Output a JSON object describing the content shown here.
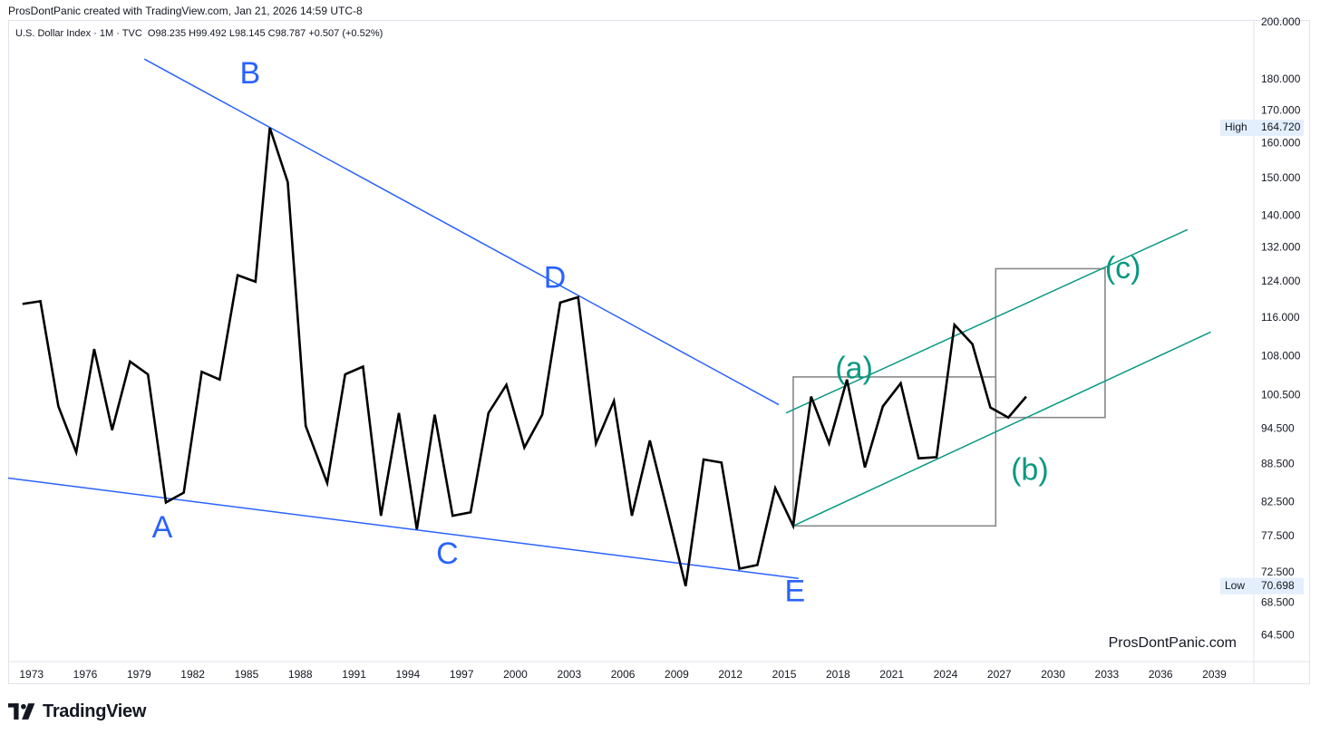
{
  "header": {
    "attribution": "ProsDontPanic created with TradingView.com, Jan 21, 2026 14:59 UTC-8"
  },
  "legend": {
    "symbol": "U.S. Dollar Index · 1M · TVC",
    "open": "O98.235",
    "high": "H99.492",
    "low": "L98.145",
    "close": "C98.787",
    "change": "+0.507 (+0.52%)"
  },
  "watermark": "ProsDontPanic.com",
  "footer": {
    "logo_text": "TradingView"
  },
  "colors": {
    "price_line": "#000000",
    "trendlines": "#2962ff",
    "channel": "#089981",
    "boxes": "#888888",
    "tag_bg": "#e3effd"
  },
  "icons": {
    "logo": "tradingview-logo-icon"
  },
  "chart_data": {
    "type": "line",
    "title": "U.S. Dollar Index · 1M · TVC",
    "scale": "log",
    "ylim": [
      61.5,
      201
    ],
    "xlim": [
      1971.7,
      2041.2
    ],
    "y_ticks": [
      {
        "value": 200,
        "label": "200.000"
      },
      {
        "value": 180,
        "label": "180.000"
      },
      {
        "value": 170,
        "label": "170.000"
      },
      {
        "value": 160,
        "label": "160.000"
      },
      {
        "value": 150,
        "label": "150.000"
      },
      {
        "value": 140,
        "label": "140.000"
      },
      {
        "value": 132,
        "label": "132.000"
      },
      {
        "value": 124,
        "label": "124.000"
      },
      {
        "value": 116,
        "label": "116.000"
      },
      {
        "value": 108,
        "label": "108.000"
      },
      {
        "value": 100.5,
        "label": "100.500"
      },
      {
        "value": 94.5,
        "label": "94.500"
      },
      {
        "value": 88.5,
        "label": "88.500"
      },
      {
        "value": 82.5,
        "label": "82.500"
      },
      {
        "value": 77.5,
        "label": "77.500"
      },
      {
        "value": 72.5,
        "label": "72.500"
      },
      {
        "value": 68.5,
        "label": "68.500"
      },
      {
        "value": 64.5,
        "label": "64.500"
      }
    ],
    "x_ticks": [
      "1973",
      "1976",
      "1979",
      "1982",
      "1985",
      "1988",
      "1991",
      "1994",
      "1997",
      "2000",
      "2003",
      "2006",
      "2009",
      "2012",
      "2015",
      "2018",
      "2021",
      "2024",
      "2027",
      "2030",
      "2033",
      "2036",
      "2039"
    ],
    "high_tag": {
      "label": "High",
      "value": 164.72,
      "text": "164.720"
    },
    "low_tag": {
      "label": "Low",
      "value": 70.698,
      "text": "70.698"
    },
    "series": [
      {
        "points": [
          [
            1972.5,
            119
          ],
          [
            1973.5,
            119.6
          ],
          [
            1974.5,
            98.5
          ],
          [
            1975.5,
            90.5
          ],
          [
            1976.5,
            109.5
          ],
          [
            1977.5,
            94.3
          ],
          [
            1978.5,
            107
          ],
          [
            1979.5,
            104.5
          ],
          [
            1980.5,
            82.5
          ],
          [
            1981.5,
            84
          ],
          [
            1982.5,
            105
          ],
          [
            1983.5,
            103.5
          ],
          [
            1984.5,
            125.5
          ],
          [
            1985.5,
            124
          ],
          [
            1986.3,
            164.72
          ],
          [
            1987.3,
            149
          ],
          [
            1988.3,
            95
          ],
          [
            1989.5,
            85.5
          ],
          [
            1990.5,
            104.5
          ],
          [
            1991.5,
            106
          ],
          [
            1992.5,
            80.5
          ],
          [
            1993.5,
            97.3
          ],
          [
            1994.5,
            78.5
          ],
          [
            1995.5,
            97
          ],
          [
            1996.5,
            80.5
          ],
          [
            1997.5,
            81
          ],
          [
            1998.5,
            97.3
          ],
          [
            1999.5,
            102.5
          ],
          [
            2000.5,
            91.3
          ],
          [
            2001.5,
            97
          ],
          [
            2002.5,
            119.3
          ],
          [
            2003.5,
            120.5
          ],
          [
            2004.5,
            92
          ],
          [
            2005.5,
            99.5
          ],
          [
            2006.5,
            80.5
          ],
          [
            2007.5,
            92.5
          ],
          [
            2008.5,
            81
          ],
          [
            2009.5,
            70.698
          ],
          [
            2010.5,
            89.3
          ],
          [
            2011.5,
            88.8
          ],
          [
            2012.5,
            73
          ],
          [
            2013.5,
            73.5
          ],
          [
            2014.5,
            84.7
          ],
          [
            2015.5,
            79
          ],
          [
            2016.5,
            100.3
          ],
          [
            2017.5,
            92
          ],
          [
            2018.5,
            103.5
          ],
          [
            2019.5,
            88
          ],
          [
            2020.5,
            98.5
          ],
          [
            2021.5,
            102.8
          ],
          [
            2022.5,
            89.5
          ],
          [
            2023.5,
            89.7
          ],
          [
            2024.5,
            114.5
          ],
          [
            2025.5,
            110.5
          ],
          [
            2026.5,
            98.3
          ],
          [
            2027.5,
            96.5
          ],
          [
            2028.5,
            100.3
          ]
        ]
      }
    ],
    "trendlines": [
      {
        "color": "#2962ff",
        "from": [
          2014.7,
          98.8
        ],
        "to": [
          1979.3,
          187
        ]
      },
      {
        "color": "#2962ff",
        "from": [
          1971.7,
          86.3
        ],
        "to": [
          2015.8,
          71.7
        ]
      },
      {
        "color": "#089981",
        "from": [
          2015.1,
          97.3
        ],
        "to": [
          2037.5,
          136.5
        ]
      },
      {
        "color": "#089981",
        "from": [
          2015.5,
          79
        ],
        "to": [
          2038.8,
          113
        ]
      }
    ],
    "boxes": [
      {
        "x1": 2015.5,
        "x2": 2026.8,
        "y1": 79,
        "y2": 104
      },
      {
        "x1": 2026.8,
        "x2": 2032.9,
        "y1": 96.5,
        "y2": 127
      }
    ],
    "annotations": [
      {
        "text": "A",
        "x": 1980.3,
        "y": 78.5,
        "style": "blue"
      },
      {
        "text": "B",
        "x": 1985.2,
        "y": 181.5,
        "style": "blue"
      },
      {
        "text": "C",
        "x": 1996.2,
        "y": 74.8,
        "style": "blue"
      },
      {
        "text": "D",
        "x": 2002.2,
        "y": 124.5,
        "style": "blue"
      },
      {
        "text": "E",
        "x": 2015.6,
        "y": 69.8,
        "style": "blue"
      },
      {
        "text": "(a)",
        "x": 2018.9,
        "y": 105.3,
        "style": "green"
      },
      {
        "text": "(b)",
        "x": 2028.7,
        "y": 87.3,
        "style": "green"
      },
      {
        "text": "(c)",
        "x": 2033.9,
        "y": 126.7,
        "style": "green"
      }
    ]
  }
}
